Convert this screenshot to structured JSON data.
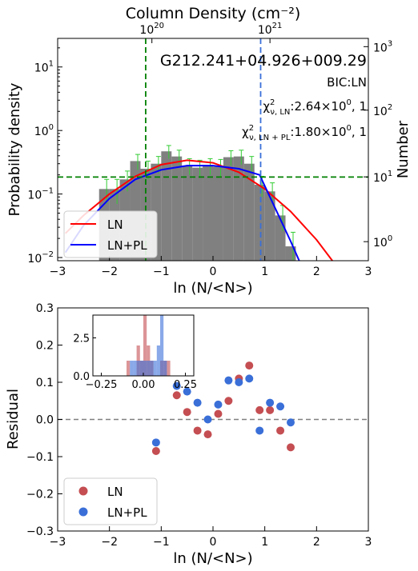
{
  "chart_data": [
    {
      "type": "bar",
      "title": "",
      "xlabel": "ln (N/<N>)",
      "ylabel": "Probability density",
      "ylabel_right": "Number",
      "top_xlabel": "Column Density (cm⁻²)",
      "top_ticks": [
        {
          "base": "10",
          "exp": "20",
          "x": -1.18
        },
        {
          "base": "10",
          "exp": "21",
          "x": 1.1
        }
      ],
      "xlim": [
        -3,
        3
      ],
      "ylim_log": [
        -2.05,
        1.45
      ],
      "xticks": [
        "−3",
        "−2",
        "−1",
        "0",
        "1",
        "2",
        "3"
      ],
      "yticks_left": [
        {
          "base": "10",
          "exp": "−2",
          "log": -2
        },
        {
          "base": "10",
          "exp": "−1",
          "log": -1
        },
        {
          "base": "10",
          "exp": "0",
          "log": 0
        },
        {
          "base": "10",
          "exp": "1",
          "log": 1
        }
      ],
      "yticks_right": [
        {
          "base": "10",
          "exp": "0",
          "log": -1.75
        },
        {
          "base": "10",
          "exp": "1",
          "log": -0.73
        },
        {
          "base": "10",
          "exp": "2",
          "log": 0.32
        },
        {
          "base": "10",
          "exp": "3",
          "log": 1.32
        }
      ],
      "annotations": {
        "source": "G212.241+04.926+009.29",
        "bic": "BIC:LN",
        "chi_ln_main": "χ",
        "chi_ln_sup": "2",
        "chi_ln_sub": "ν, LN",
        "chi_ln_value": ":2.64×10",
        "chi_ln_exp": "0",
        "chi_ln_dof": ", 1",
        "chi_pl_main": "χ",
        "chi_pl_sup": "2",
        "chi_pl_sub": "ν, LN + PL",
        "chi_pl_value": ":1.80×10",
        "chi_pl_exp": "0",
        "chi_pl_dof": ", 1"
      },
      "bins": {
        "width": 0.2,
        "centers": [
          -2.1,
          -1.9,
          -1.7,
          -1.5,
          -1.3,
          -1.1,
          -0.9,
          -0.7,
          -0.5,
          -0.3,
          -0.1,
          0.1,
          0.3,
          0.5,
          0.7,
          0.9,
          1.1,
          1.3,
          1.5
        ],
        "values": [
          0.12,
          0.12,
          0.17,
          0.33,
          0.25,
          0.3,
          0.47,
          0.39,
          0.28,
          0.26,
          0.28,
          0.27,
          0.38,
          0.39,
          0.3,
          0.14,
          0.11,
          0.046,
          0.015
        ],
        "errors": [
          0.05,
          0.05,
          0.06,
          0.09,
          0.08,
          0.09,
          0.11,
          0.1,
          0.08,
          0.08,
          0.08,
          0.08,
          0.1,
          0.1,
          0.09,
          0.05,
          0.04,
          0.02,
          0.01
        ]
      },
      "series": [
        {
          "name": "LN",
          "color": "#ff0000",
          "x": [
            -2.85,
            -2.5,
            -2.0,
            -1.5,
            -1.0,
            -0.5,
            0.0,
            0.5,
            1.0,
            1.5,
            2.0,
            2.5
          ],
          "y": [
            0.024,
            0.046,
            0.1,
            0.19,
            0.29,
            0.34,
            0.31,
            0.22,
            0.12,
            0.053,
            0.019,
            0.0055
          ]
        },
        {
          "name": "LN+PL",
          "color": "#0000ff",
          "x": [
            -2.85,
            -2.5,
            -2.0,
            -1.5,
            -1.0,
            -0.5,
            0.0,
            0.5,
            0.9,
            1.2,
            1.5,
            1.8
          ],
          "y": [
            0.012,
            0.032,
            0.085,
            0.17,
            0.24,
            0.28,
            0.28,
            0.25,
            0.2,
            0.06,
            0.018,
            0.005
          ]
        }
      ],
      "vlines": [
        {
          "x": -1.3,
          "color": "#008000",
          "style": "dashed"
        },
        {
          "x": 0.92,
          "color": "#3a6fd8",
          "style": "dashed"
        }
      ],
      "hlines": [
        {
          "y": 0.185,
          "color": "#008000",
          "style": "dashed"
        }
      ],
      "legend": {
        "position": "lower-left",
        "entries": [
          "LN",
          "LN+PL"
        ]
      }
    },
    {
      "type": "scatter",
      "title": "",
      "xlabel": "ln (N/<N>)",
      "ylabel": "Residual",
      "xlim": [
        -3,
        3
      ],
      "ylim": [
        -0.3,
        0.3
      ],
      "xticks": [
        "−3",
        "−2",
        "−1",
        "0",
        "1",
        "2",
        "3"
      ],
      "yticks": [
        "−0.3",
        "−0.2",
        "−0.1",
        "0.0",
        "0.1",
        "0.2",
        "0.3"
      ],
      "hline": {
        "y": 0,
        "color": "#808080",
        "style": "dashed"
      },
      "series": [
        {
          "name": "LN",
          "color": "#c44e52",
          "x": [
            -1.1,
            -0.7,
            -0.5,
            -0.3,
            -0.1,
            0.1,
            0.3,
            0.5,
            0.7,
            0.9,
            1.1,
            1.3,
            1.5
          ],
          "y": [
            -0.085,
            0.065,
            0.02,
            -0.03,
            -0.04,
            0.015,
            0.05,
            0.11,
            0.145,
            0.025,
            0.025,
            -0.03,
            -0.075
          ]
        },
        {
          "name": "LN+PL",
          "color": "#3a6fd8",
          "x": [
            -1.1,
            -0.7,
            -0.5,
            -0.3,
            -0.1,
            0.1,
            0.3,
            0.5,
            0.7,
            0.9,
            1.1,
            1.3,
            1.5
          ],
          "y": [
            -0.062,
            0.09,
            0.075,
            0.045,
            0.0,
            0.04,
            0.105,
            0.1,
            0.11,
            -0.03,
            0.045,
            0.035,
            -0.008
          ]
        }
      ],
      "legend": {
        "position": "lower-left",
        "entries": [
          "LN",
          "LN+PL"
        ]
      },
      "inset": {
        "type": "histogram",
        "xlim": [
          -0.3,
          0.3
        ],
        "ylim": [
          0,
          4.0
        ],
        "xticks": [
          "−0.25",
          "0.00",
          "0.25"
        ],
        "yticks": [
          "0.0",
          "2.5"
        ],
        "bin_width": 0.02,
        "series": [
          {
            "name": "LN",
            "color": "#c44e52",
            "bins": [
              -0.09,
              -0.07,
              -0.05,
              -0.03,
              -0.01,
              0.01,
              0.03,
              0.05,
              0.07,
              0.11,
              0.13,
              0.15
            ],
            "counts": [
              1,
              0,
              0,
              2,
              1,
              4,
              2,
              1,
              0,
              1,
              1,
              1
            ]
          },
          {
            "name": "LN+PL",
            "color": "#3a6fd8",
            "bins": [
              -0.07,
              -0.05,
              -0.03,
              -0.01,
              0.01,
              0.03,
              0.05,
              0.07,
              0.09,
              0.11,
              0.13
            ],
            "counts": [
              1,
              1,
              1,
              1,
              1,
              1,
              1,
              1,
              2,
              4,
              1
            ]
          }
        ]
      }
    }
  ]
}
